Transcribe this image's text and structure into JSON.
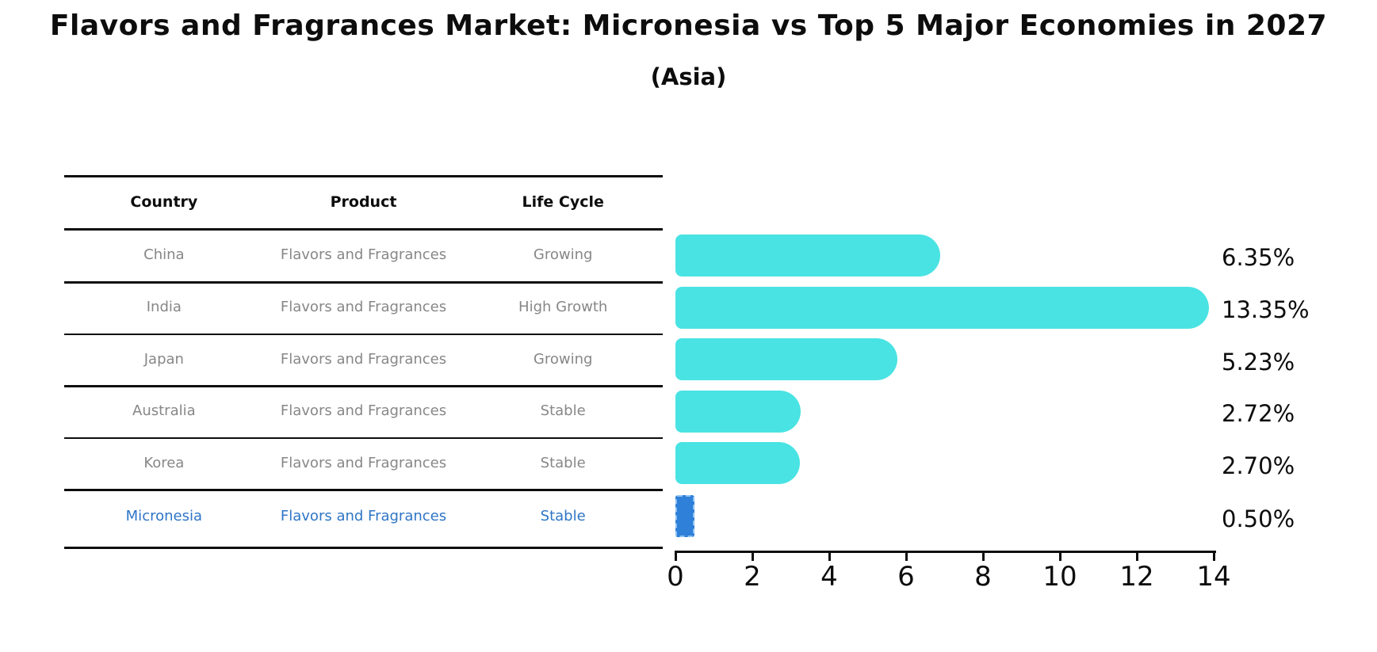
{
  "title": "Flavors and Fragrances Market: Micronesia vs Top 5 Major Economies in 2027",
  "subtitle": "(Asia)",
  "table": {
    "headers": [
      "Country",
      "Product",
      "Life Cycle"
    ],
    "rows": [
      {
        "country": "China",
        "product": "Flavors and Fragrances",
        "life_cycle": "Growing"
      },
      {
        "country": "India",
        "product": "Flavors and Fragrances",
        "life_cycle": "High Growth"
      },
      {
        "country": "Japan",
        "product": "Flavors and Fragrances",
        "life_cycle": "Growing"
      },
      {
        "country": "Australia",
        "product": "Flavors and Fragrances",
        "life_cycle": "Stable"
      },
      {
        "country": "Korea",
        "product": "Flavors and Fragrances",
        "life_cycle": "Stable"
      },
      {
        "country": "Micronesia",
        "product": "Flavors and Fragrances",
        "life_cycle": "Stable"
      }
    ]
  },
  "chart_data": {
    "type": "bar",
    "orientation": "horizontal",
    "categories": [
      "China",
      "India",
      "Japan",
      "Australia",
      "Korea",
      "Micronesia"
    ],
    "values": [
      6.35,
      13.35,
      5.23,
      2.72,
      2.7,
      0.5
    ],
    "value_labels": [
      "6.35%",
      "13.35%",
      "5.23%",
      "2.72%",
      "2.70%",
      "0.50%"
    ],
    "xlim": [
      0,
      14
    ],
    "xticks": [
      0,
      2,
      4,
      6,
      8,
      10,
      12,
      14
    ],
    "grid": false,
    "legend": false,
    "bar_color": "#49E3E3",
    "highlight_color": "#2E80D9",
    "highlight_border_color": "#8FC2F2",
    "highlight_index": 5,
    "title": "Flavors and Fragrances Market: Micronesia vs Top 5 Major Economies in 2027",
    "subtitle": "(Asia)"
  },
  "colors": {
    "background": "#FFFFFF",
    "text": "#0d0d0d",
    "row_text": "#878787",
    "highlight_text": "#2E75C6"
  }
}
